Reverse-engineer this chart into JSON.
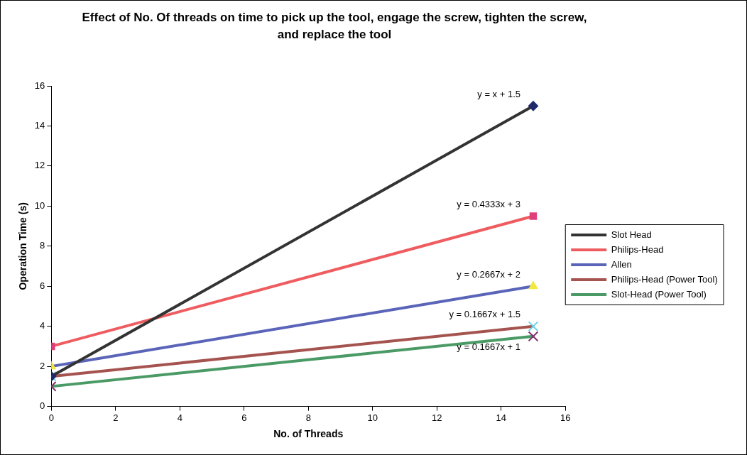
{
  "chart_data": {
    "type": "line",
    "title": "Effect of No. Of threads on time to pick up the tool, engage the screw, tighten the screw, and replace the tool",
    "xlabel": "No. of Threads",
    "ylabel": "Operation Time (s)",
    "x": [
      0,
      15
    ],
    "xlim": [
      0,
      16
    ],
    "xticks": [
      0,
      2,
      4,
      6,
      8,
      10,
      12,
      14,
      16
    ],
    "ylim": [
      0,
      16
    ],
    "yticks": [
      0,
      2,
      4,
      6,
      8,
      10,
      12,
      14,
      16
    ],
    "grid": false,
    "legend": "right",
    "line_style": "solid",
    "series": [
      {
        "name": "Slot Head",
        "color": "#333333",
        "colors": [
          "#1f2a6b",
          "#1f2a6b"
        ],
        "marker": "diamond",
        "values": [
          1.5,
          15
        ]
      },
      {
        "name": "Philips-Head",
        "color": "#ee5c60",
        "colors": [
          "#e0407a",
          "#e0407a"
        ],
        "marker": "square",
        "values": [
          3,
          9.5
        ]
      },
      {
        "name": "Allen",
        "color": "#5a64b8",
        "colors": [
          "#f2e840",
          "#f2e840"
        ],
        "marker": "triangle",
        "values": [
          2,
          6
        ]
      },
      {
        "name": "Philips-Head (Power Tool)",
        "color": "#a5534f",
        "colors": [
          "#6fd0e8",
          "#6fd0e8"
        ],
        "marker": "cross",
        "values": [
          1.5,
          4
        ]
      },
      {
        "name": "Slot-Head (Power Tool)",
        "color": "#4a9a66",
        "colors": [
          "#80306a",
          "#80306a"
        ],
        "marker": "cross",
        "values": [
          1,
          3.5
        ]
      }
    ],
    "annotations": [
      "y = x + 1.5",
      "y = 0.4333x + 3",
      "y = 0.2667x + 2",
      "y = 0.1667x + 1.5",
      "y = 0.1667x + 1"
    ]
  }
}
